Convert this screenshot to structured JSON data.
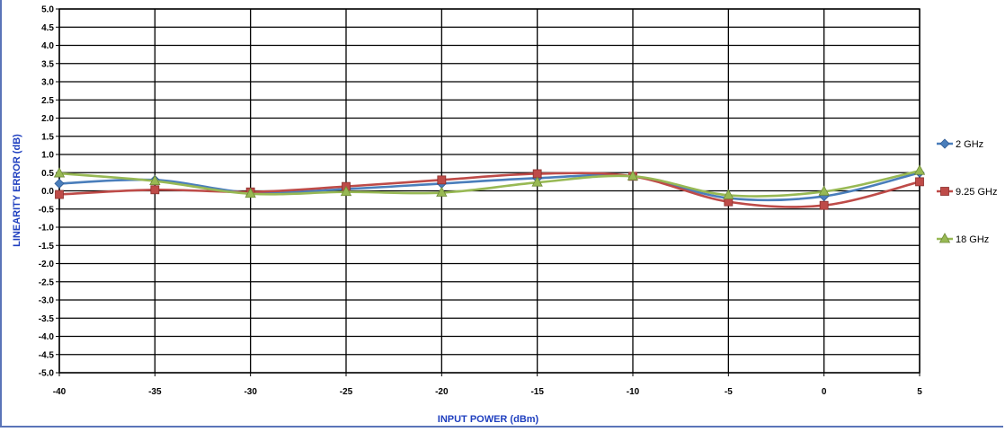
{
  "chart_data": {
    "type": "line",
    "title": "",
    "xlabel": "INPUT POWER (dBm)",
    "ylabel": "LINEARITY ERROR (dB)",
    "x": [
      -40,
      -35,
      -30,
      -25,
      -20,
      -15,
      -10,
      -5,
      0,
      5
    ],
    "xlim": [
      -40,
      5
    ],
    "ylim": [
      -5.0,
      5.0
    ],
    "x_ticks": [
      "-40",
      "-35",
      "-30",
      "-25",
      "-20",
      "-15",
      "-10",
      "-5",
      "0",
      "5"
    ],
    "y_ticks": [
      "5.0",
      "4.5",
      "4.0",
      "3.5",
      "3.0",
      "2.5",
      "2.0",
      "1.5",
      "1.0",
      "0.5",
      "0.0",
      "-0.5",
      "-1.0",
      "-1.5",
      "-2.0",
      "-2.5",
      "-3.0",
      "-3.5",
      "-4.0",
      "-4.5",
      "-5.0"
    ],
    "grid": true,
    "smooth": true,
    "legend_position": "right",
    "axis_title_color": "#1f3fbf",
    "series": [
      {
        "name": "2 GHz",
        "color": "#4a7ebb",
        "marker": "diamond",
        "values": [
          0.2,
          0.3,
          -0.05,
          0.05,
          0.2,
          0.35,
          0.4,
          -0.2,
          -0.15,
          0.5
        ]
      },
      {
        "name": "9.25 GHz",
        "color": "#be4b48",
        "marker": "square",
        "values": [
          -0.1,
          0.03,
          -0.03,
          0.12,
          0.3,
          0.47,
          0.4,
          -0.3,
          -0.4,
          0.25
        ]
      },
      {
        "name": "18 GHz",
        "color": "#98b954",
        "marker": "triangle",
        "values": [
          0.48,
          0.27,
          -0.08,
          -0.03,
          -0.05,
          0.23,
          0.4,
          -0.12,
          -0.02,
          0.55
        ]
      }
    ]
  }
}
